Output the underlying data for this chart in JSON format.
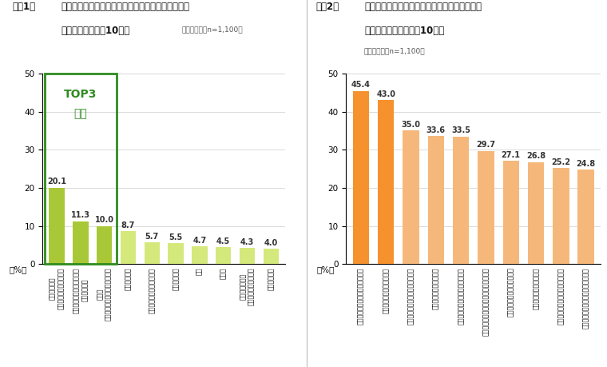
{
  "fig1": {
    "categories": [
      "葉ものの野菜\n（小松菜・キャベツ等）",
      "料理の飾りつけに使う野菜\n（パセリ等）",
      "根菜類\n（大根・にんじん・ごぼう等）",
      "調味料や薬味",
      "お土産などでもらうお菓子",
      "くだものの類",
      "パン",
      "ごはん",
      "左記以外の野菜\n（トマト・玉ねぎ等）",
      "牛乳・乳製品"
    ],
    "values": [
      20.1,
      11.3,
      10.0,
      8.7,
      5.7,
      5.5,
      4.7,
      4.5,
      4.3,
      4.0
    ],
    "bar_colors_top3": "#a8c837",
    "bar_colors_rest": "#d4e87c",
    "top3_border_color": "#2e8b1e",
    "top3_label_color": "#2e8b1e",
    "ylabel": "（%）",
    "ylim": [
      0,
      50
    ],
    "yticks": [
      0,
      10,
      20,
      30,
      40,
      50
    ],
    "top3_line1": "TOP3",
    "top3_line2": "野菜"
  },
  "fig2": {
    "categories": [
      "賞味期限の早い食品から使用する",
      "食べきれない分は冷凍する",
      "賞味期限の近い値引き商品を買う",
      "食べきれるぶんだけ作る",
      "外食では食べきれる量を注文する",
      "冷蔵庫内の食品をこまめにチェックする",
      "食材をまとめ買いしすぎない",
      "食品の衝動買いを控える",
      "野菜は傷む前にまとめて調理する",
      "食品を使いきれるよう計画を立てる"
    ],
    "values": [
      45.4,
      43.0,
      35.0,
      33.6,
      33.5,
      29.7,
      27.1,
      26.8,
      25.2,
      24.8
    ],
    "bar_colors_top2": "#f5922e",
    "bar_colors_rest": "#f5b87a",
    "ylabel": "（%）",
    "ylim": [
      0,
      50
    ],
    "yticks": [
      0,
      10,
      20,
      30,
      40,
      50
    ]
  },
  "fig1_title1": "「つい無駄にしてしまう」「つい食べきれず捧てて",
  "fig1_title2": "しまう」食品上位10項目",
  "fig1_title_sub": "（複数回答：n=1,100）",
  "fig1_label": "＜図1＞",
  "fig2_title1": "フードロスをしないように心掛けていること、",
  "fig2_title2": "工夫していること上位10項目",
  "fig2_title_sub": "（複数回答：n=1,100）",
  "fig2_label": "＜図2＞",
  "background_color": "#ffffff"
}
